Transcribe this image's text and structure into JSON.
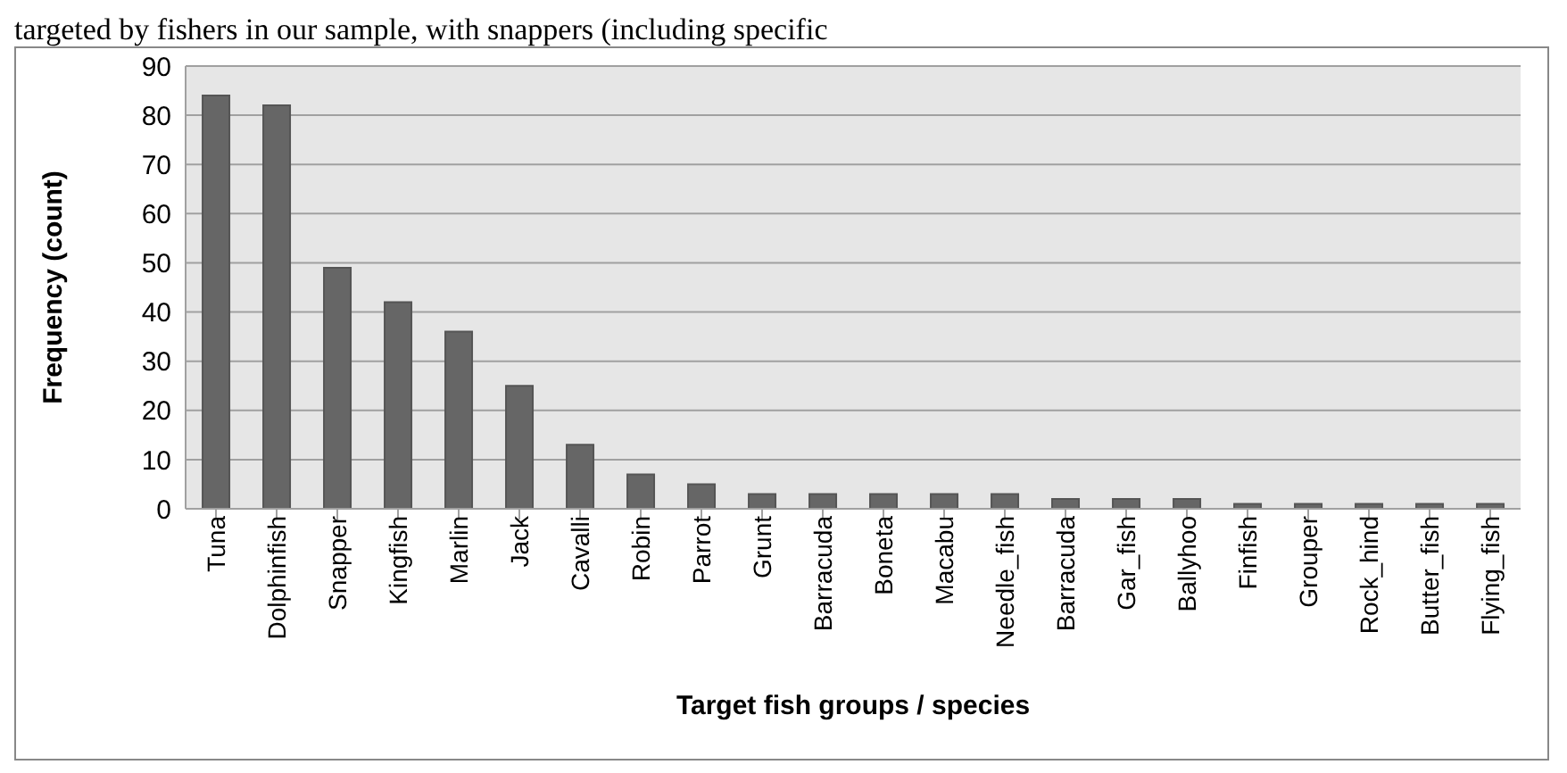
{
  "chart_data": {
    "type": "bar",
    "xlabel": "Target fish groups / species",
    "ylabel": "Frequency (count)",
    "annotations": [
      "targeted by fishers in our sample, with snappers (including specific"
    ],
    "categories": [
      "Tuna",
      "Dolphinfish",
      "Snapper",
      "Kingfish",
      "Marlin",
      "Jack",
      "Cavalli",
      "Robin",
      "Parrot",
      "Grunt",
      "Barracuda",
      "Boneta",
      "Macabu",
      "Needle_fish",
      "Barracuda",
      "Gar_fish",
      "Ballyhoo",
      "Finfish",
      "Grouper",
      "Rock_hind",
      "Butter_fish",
      "Flying_fish"
    ],
    "values": [
      84,
      82,
      49,
      42,
      36,
      25,
      13,
      7,
      5,
      3,
      3,
      3,
      3,
      3,
      2,
      2,
      2,
      1,
      1,
      1,
      1,
      1
    ],
    "color": "#666666",
    "ylim": [
      0,
      90
    ],
    "yticks": [
      0,
      10,
      20,
      30,
      40,
      50,
      60,
      70,
      80,
      90
    ],
    "grid": "y"
  }
}
